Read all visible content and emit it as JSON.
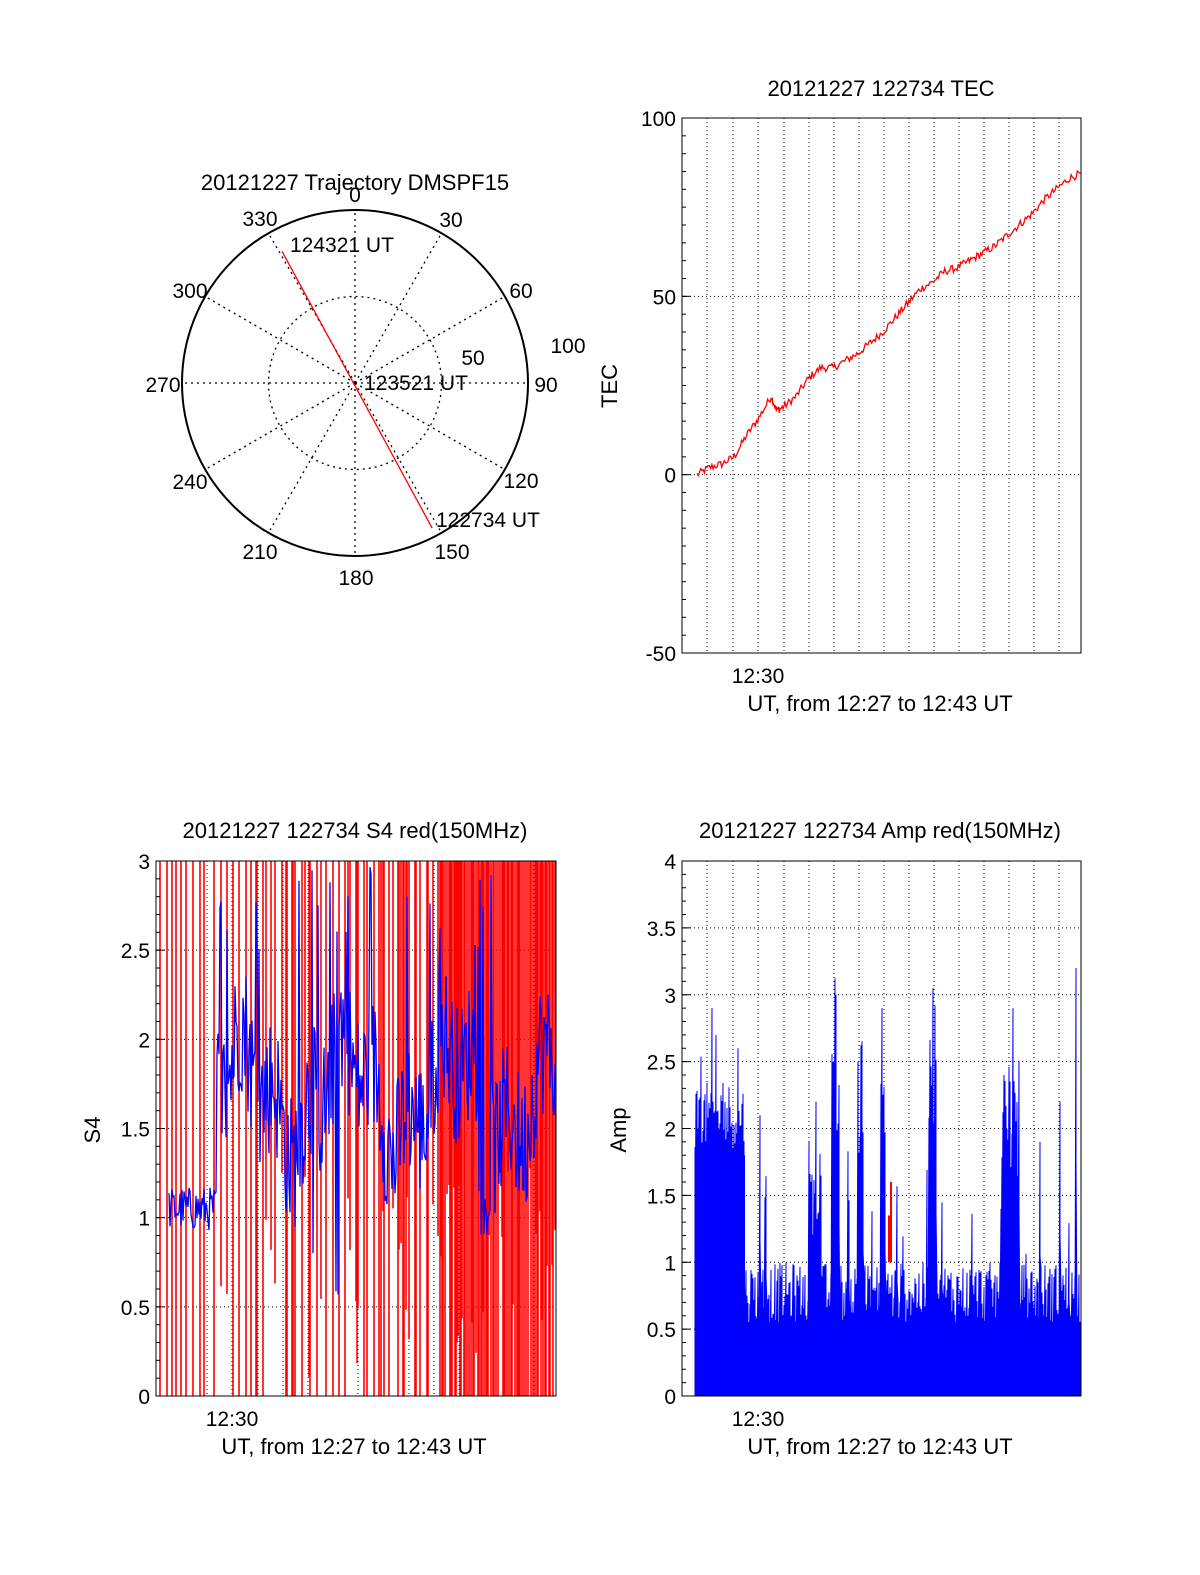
{
  "chart_data": [
    {
      "id": "polar",
      "type": "polar-trajectory",
      "title": "20121227 Trajectory DMSPF15",
      "angle_labels": [
        "0",
        "30",
        "60",
        "90",
        "120",
        "150",
        "180",
        "210",
        "240",
        "270",
        "300",
        "330"
      ],
      "radial_labels": [
        "50",
        "100"
      ],
      "r_max": 100,
      "track": {
        "color": "#ff0000",
        "start": {
          "azimuth": 152,
          "elevation_offset": 95,
          "label": "122734 UT"
        },
        "middle": {
          "label": "123521 UT"
        },
        "end": {
          "azimuth": 331,
          "elevation_offset": 87,
          "label": "124321 UT"
        }
      }
    },
    {
      "id": "tec",
      "type": "line",
      "title": "20121227 122734 TEC",
      "xlabel": "UT, from 12:27 to 12:43 UT",
      "ylabel": "TEC",
      "x_tick_label": "12:30",
      "yticks": [
        "-50",
        "0",
        "50",
        "100"
      ],
      "ylim": [
        -50,
        100
      ],
      "xlim_minutes": [
        12.1,
        12.75
      ],
      "series": [
        {
          "color": "#ff0000",
          "points": [
            [
              0,
              0
            ],
            [
              0.5,
              2
            ],
            [
              1,
              3
            ],
            [
              1.5,
              5
            ],
            [
              2,
              11
            ],
            [
              2.5,
              16
            ],
            [
              3,
              22
            ],
            [
              3.2,
              18
            ],
            [
              3.5,
              19
            ],
            [
              4,
              22
            ],
            [
              4.5,
              27
            ],
            [
              5,
              30
            ],
            [
              5.5,
              30
            ],
            [
              6,
              32
            ],
            [
              6.5,
              34
            ],
            [
              7,
              37
            ],
            [
              7.5,
              40
            ],
            [
              8,
              44
            ],
            [
              8.5,
              48
            ],
            [
              9,
              52
            ],
            [
              9.5,
              54
            ],
            [
              10,
              57
            ],
            [
              10.5,
              58
            ],
            [
              11,
              60
            ],
            [
              11.5,
              62
            ],
            [
              12,
              64
            ],
            [
              12.5,
              67
            ],
            [
              13,
              70
            ],
            [
              13.5,
              73
            ],
            [
              14,
              77
            ],
            [
              14.5,
              80
            ],
            [
              15,
              83
            ],
            [
              15.5,
              84.5
            ]
          ]
        }
      ]
    },
    {
      "id": "s4",
      "type": "line",
      "title": "20121227 122734 S4 red(150MHz)",
      "xlabel": "UT, from 12:27 to 12:43 UT",
      "ylabel": "S4",
      "x_tick_label": "12:30",
      "yticks": [
        "0",
        "0.5",
        "1",
        "1.5",
        "2",
        "2.5",
        "3"
      ],
      "ylim": [
        0,
        3
      ],
      "series": [
        {
          "color": "#ff0000",
          "description": "red channel S4, saturated spikes"
        },
        {
          "color": "#0000ff",
          "description": "blue channel S4, ~1.0 before 12:29, ~1.5-2.2 afterwards"
        }
      ]
    },
    {
      "id": "amp",
      "type": "bar",
      "title": "20121227 122734 Amp red(150MHz)",
      "xlabel": "UT, from 12:27 to 12:43 UT",
      "ylabel": "Amp",
      "x_tick_label": "12:30",
      "yticks": [
        "0",
        "0.5",
        "1",
        "1.5",
        "2",
        "2.5",
        "3",
        "3.5",
        "4"
      ],
      "ylim": [
        0,
        4
      ],
      "series": [
        {
          "color": "#0000ff",
          "description": "blue amplitude, ~1.9 before 12:29, ~0.7 baseline after with peaks to ~3.2"
        },
        {
          "color": "#ff0000",
          "description": "red amplitude, isolated spike to ~1.6"
        }
      ]
    }
  ]
}
